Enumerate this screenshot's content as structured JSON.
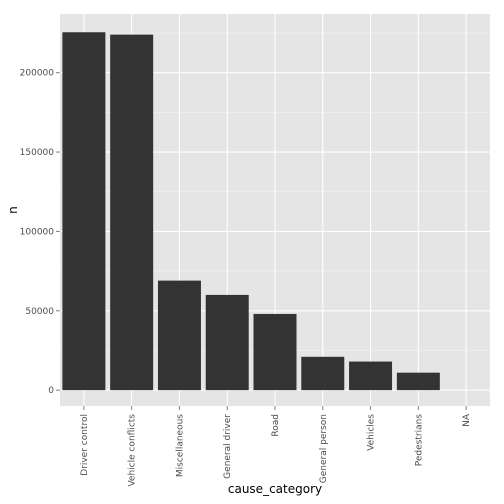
{
  "chart_data": {
    "type": "bar",
    "xlabel": "cause_category",
    "ylabel": "n",
    "categories": [
      "Driver control",
      "Vehicle conflicts",
      "Miscellaneous",
      "General driver",
      "Road",
      "General person",
      "Vehicles",
      "Pedestrians",
      "NA"
    ],
    "values": [
      225500,
      224000,
      69000,
      60000,
      48000,
      21000,
      18000,
      11000,
      0
    ],
    "ylim": [
      -10000,
      237000
    ],
    "yticks": [
      0,
      50000,
      100000,
      150000,
      200000
    ],
    "ytick_labels": [
      "0",
      "50000",
      "100000",
      "150000",
      "200000"
    ],
    "grid": true,
    "bar_color": "#333333",
    "panel_color": "#e5e5e5",
    "grid_major_color": "#ffffff",
    "grid_minor_color": "#f2f2f2"
  }
}
